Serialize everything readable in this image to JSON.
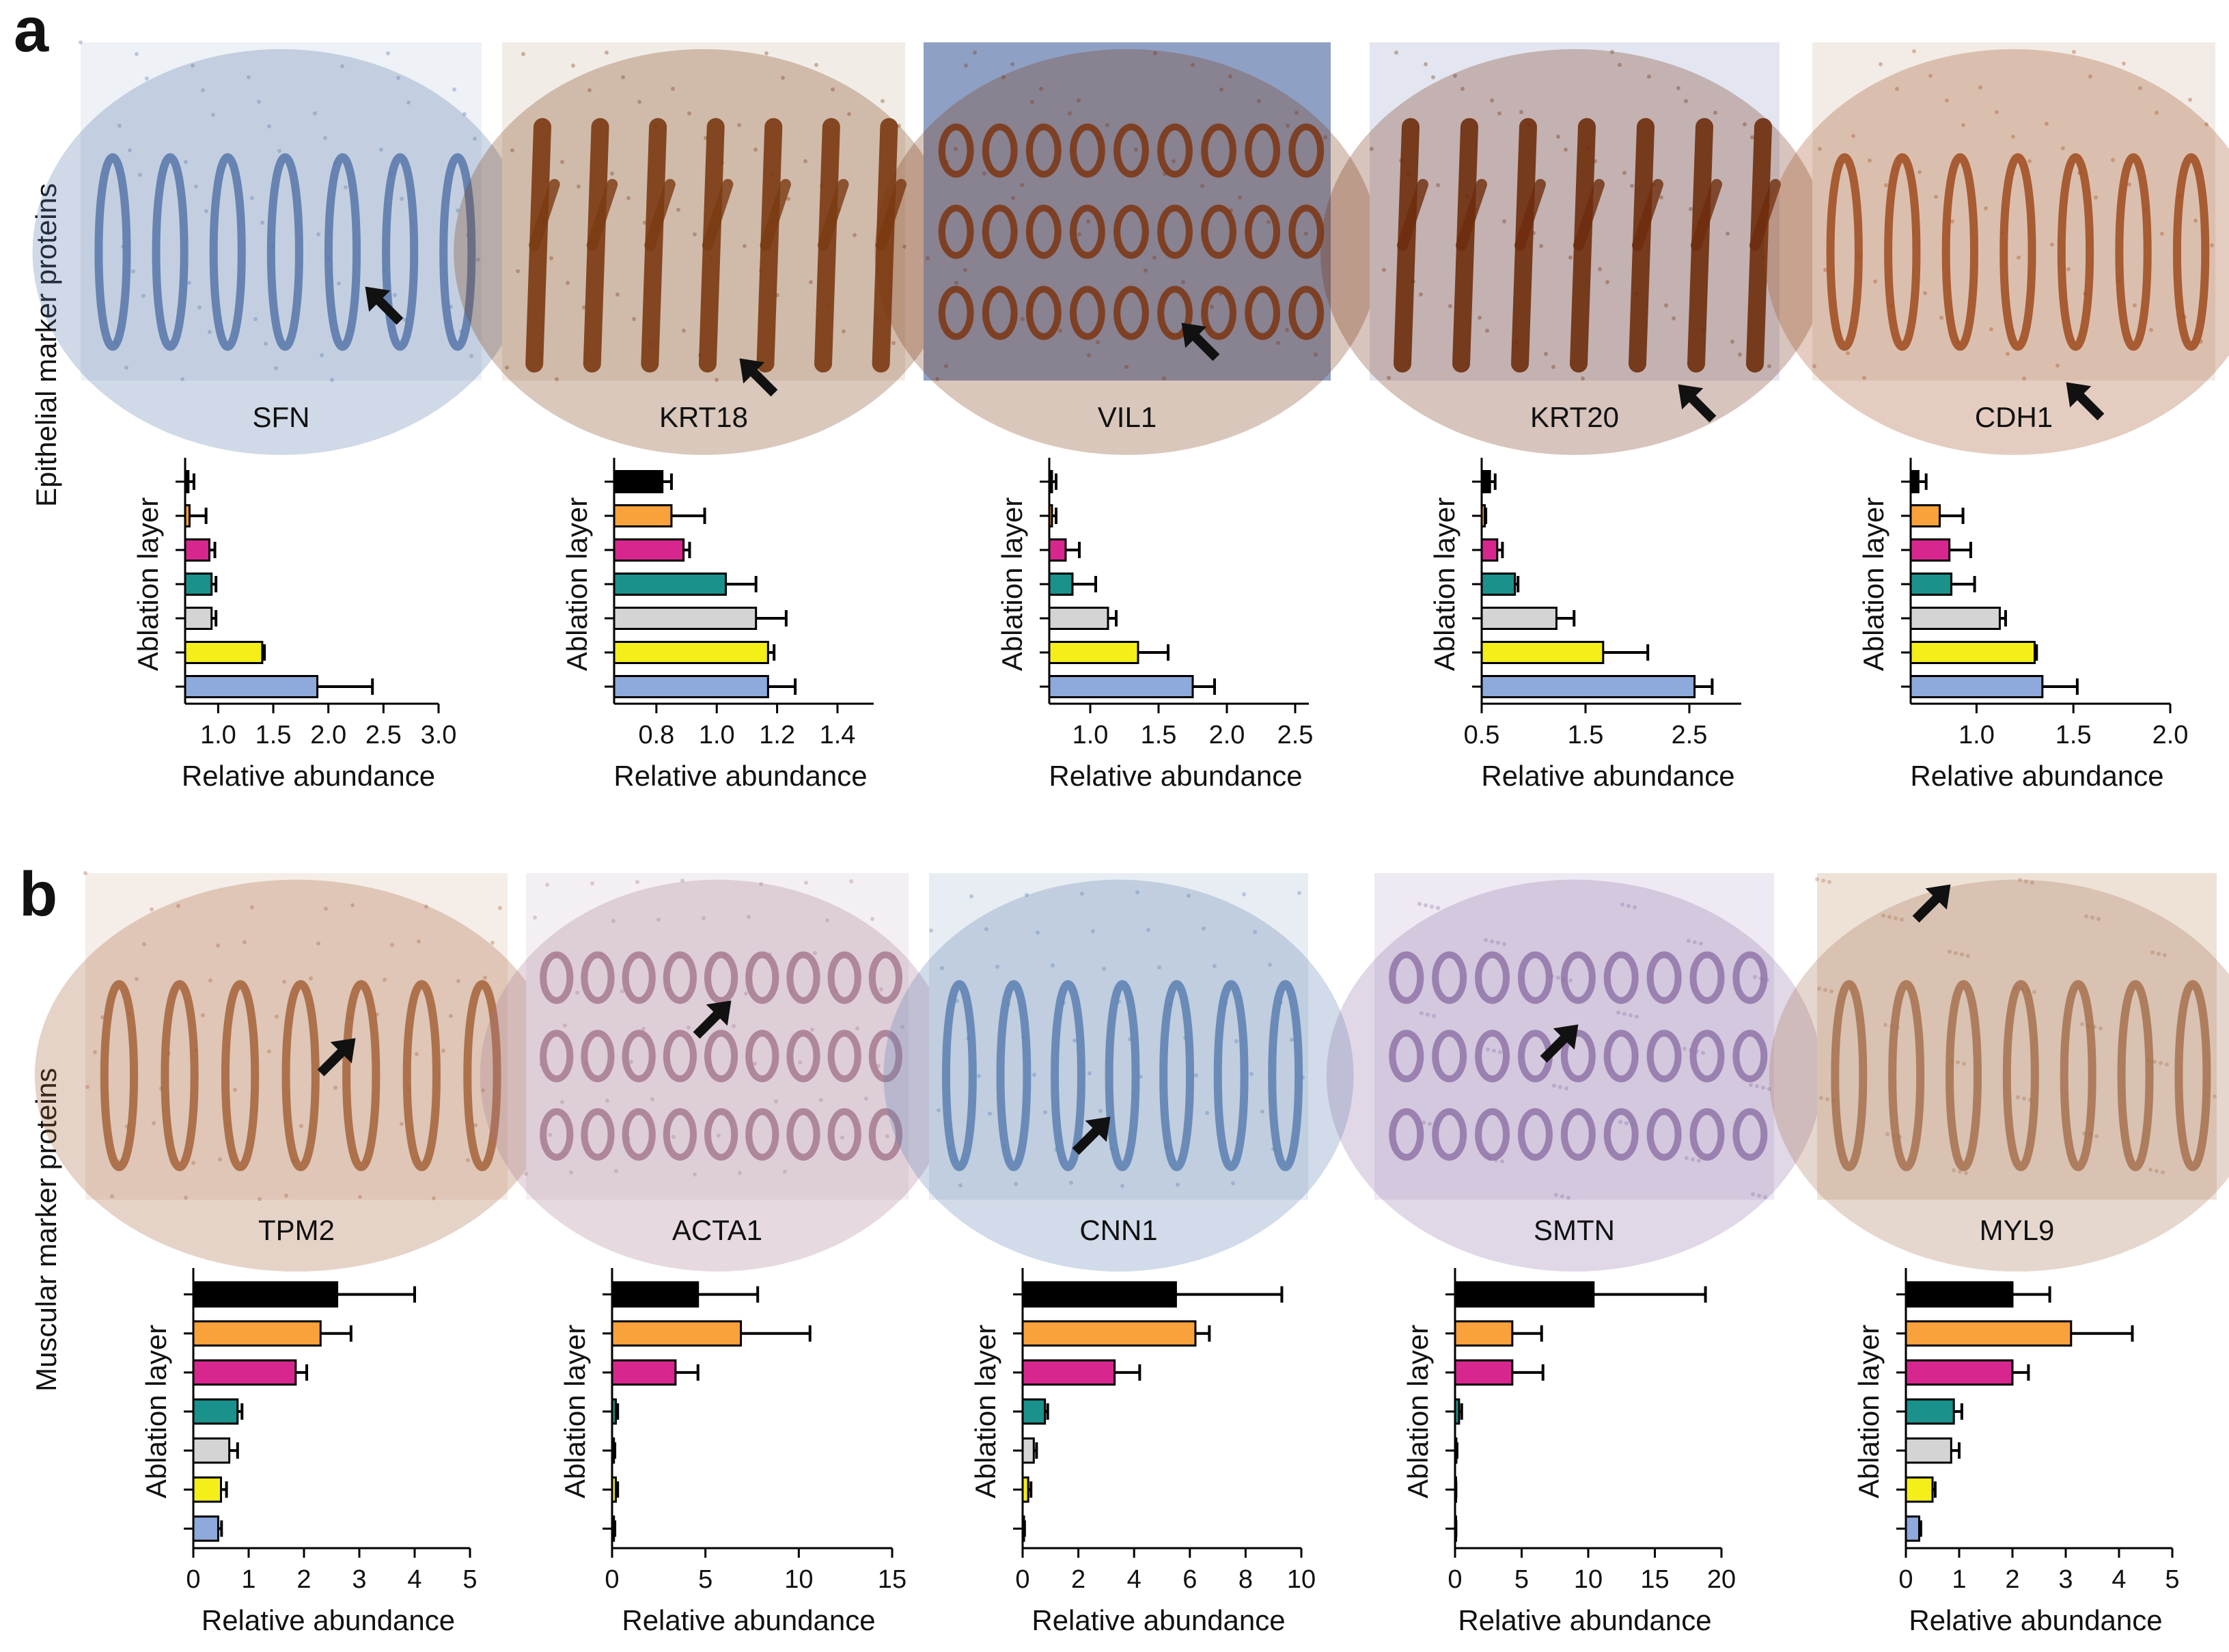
{
  "panels": [
    {
      "letter": "a",
      "row_label": "Epithelial marker proteins"
    },
    {
      "letter": "b",
      "row_label": "Muscular marker proteins"
    }
  ],
  "layer_colors": [
    "#000000",
    "#f9a13b",
    "#d7278e",
    "#1a918a",
    "#d4d4d4",
    "#f4ee19",
    "#8ea9db"
  ],
  "tissue_images": {
    "a": [
      {
        "stain": "#5676a9",
        "bg": "#eef1f6",
        "pattern": "crypts"
      },
      {
        "stain": "#7a3a12",
        "bg": "#f1ede6",
        "pattern": "branch"
      },
      {
        "stain": "#7b3510",
        "bg": "#8ea0c4",
        "pattern": "round"
      },
      {
        "stain": "#6e2c0d",
        "bg": "#e3e6f0",
        "pattern": "branch"
      },
      {
        "stain": "#9e4a1d",
        "bg": "#f3ece6",
        "pattern": "crypts"
      }
    ],
    "b": [
      {
        "stain": "#a5613a",
        "bg": "#f5ede8",
        "pattern": "crypts"
      },
      {
        "stain": "#a77a8f",
        "bg": "#f4eff4",
        "pattern": "round"
      },
      {
        "stain": "#5a7fb0",
        "bg": "#e8edf3",
        "pattern": "crypts"
      },
      {
        "stain": "#8f74a8",
        "bg": "#eee9f2",
        "pattern": "round"
      },
      {
        "stain": "#a57150",
        "bg": "#eee2d7",
        "pattern": "crypts"
      }
    ]
  },
  "chart_data": [
    {
      "type": "bar",
      "orientation": "horizontal",
      "panel": "a",
      "title": "SFN",
      "ylabel": "Ablation layer",
      "xlabel": "Relative abundance",
      "xlim": [
        0.7,
        3.0
      ],
      "xticks": [
        1.0,
        1.5,
        2.0,
        2.5,
        3.0
      ],
      "xtick_labels": [
        "1.0",
        "1.5",
        "2.0",
        "2.5",
        "3.0"
      ],
      "values": [
        0.73,
        0.74,
        0.92,
        0.94,
        0.94,
        1.4,
        1.9
      ],
      "errors": [
        0.05,
        0.15,
        0.05,
        0.04,
        0.04,
        0.02,
        0.5
      ]
    },
    {
      "type": "bar",
      "orientation": "horizontal",
      "panel": "a",
      "title": "KRT18",
      "ylabel": "Ablation layer",
      "xlabel": "Relative abundance",
      "xlim": [
        0.66,
        1.52
      ],
      "xticks": [
        0.8,
        1.0,
        1.2,
        1.4
      ],
      "xtick_labels": [
        "0.8",
        "1.0",
        "1.2",
        "1.4"
      ],
      "values": [
        0.82,
        0.85,
        0.89,
        1.03,
        1.13,
        1.17,
        1.17
      ],
      "errors": [
        0.03,
        0.11,
        0.02,
        0.1,
        0.1,
        0.02,
        0.09
      ]
    },
    {
      "type": "bar",
      "orientation": "horizontal",
      "panel": "a",
      "title": "VIL1",
      "ylabel": "Ablation layer",
      "xlabel": "Relative abundance",
      "xlim": [
        0.7,
        2.6
      ],
      "xticks": [
        1.0,
        1.5,
        2.0,
        2.5
      ],
      "xtick_labels": [
        "1.0",
        "1.5",
        "2.0",
        "2.5"
      ],
      "values": [
        0.72,
        0.72,
        0.82,
        0.87,
        1.13,
        1.35,
        1.75
      ],
      "errors": [
        0.03,
        0.03,
        0.1,
        0.17,
        0.06,
        0.22,
        0.16
      ]
    },
    {
      "type": "bar",
      "orientation": "horizontal",
      "panel": "a",
      "title": "KRT20",
      "ylabel": "Ablation layer",
      "xlabel": "Relative abundance",
      "xlim": [
        0.5,
        3.0
      ],
      "xticks": [
        0.5,
        1.5,
        2.5
      ],
      "xtick_labels": [
        "0.5",
        "1.5",
        "2.5"
      ],
      "values": [
        0.58,
        0.53,
        0.65,
        0.82,
        1.22,
        1.67,
        2.55
      ],
      "errors": [
        0.05,
        0.01,
        0.05,
        0.03,
        0.17,
        0.43,
        0.17
      ]
    },
    {
      "type": "bar",
      "orientation": "horizontal",
      "panel": "a",
      "title": "CDH1",
      "ylabel": "Ablation layer",
      "xlabel": "Relative abundance",
      "xlim": [
        0.66,
        2.0
      ],
      "xticks": [
        1.0,
        1.5,
        2.0
      ],
      "xtick_labels": [
        "1.0",
        "1.5",
        "2.0"
      ],
      "values": [
        0.7,
        0.81,
        0.86,
        0.87,
        1.12,
        1.3,
        1.34
      ],
      "errors": [
        0.04,
        0.12,
        0.11,
        0.12,
        0.03,
        0.01,
        0.18
      ]
    },
    {
      "type": "bar",
      "orientation": "horizontal",
      "panel": "b",
      "title": "TPM2",
      "ylabel": "Ablation layer",
      "xlabel": "Relative abundance",
      "xlim": [
        0,
        5
      ],
      "xticks": [
        0,
        1,
        2,
        3,
        4,
        5
      ],
      "xtick_labels": [
        "0",
        "1",
        "2",
        "3",
        "4",
        "5"
      ],
      "values": [
        2.6,
        2.3,
        1.85,
        0.8,
        0.65,
        0.5,
        0.45
      ],
      "errors": [
        1.4,
        0.55,
        0.2,
        0.08,
        0.15,
        0.1,
        0.06
      ]
    },
    {
      "type": "bar",
      "orientation": "horizontal",
      "panel": "b",
      "title": "ACTA1",
      "ylabel": "Ablation layer",
      "xlabel": "Relative abundance",
      "xlim": [
        0,
        15
      ],
      "xticks": [
        0,
        5,
        10,
        15
      ],
      "xtick_labels": [
        "0",
        "5",
        "10",
        "15"
      ],
      "values": [
        4.6,
        6.9,
        3.4,
        0.2,
        0.1,
        0.2,
        0.1
      ],
      "errors": [
        3.2,
        3.7,
        1.2,
        0.1,
        0.05,
        0.1,
        0.05
      ]
    },
    {
      "type": "bar",
      "orientation": "horizontal",
      "panel": "b",
      "title": "CNN1",
      "ylabel": "Ablation layer",
      "xlabel": "Relative abundance",
      "xlim": [
        0,
        10
      ],
      "xticks": [
        0,
        2,
        4,
        6,
        8,
        10
      ],
      "xtick_labels": [
        "0",
        "2",
        "4",
        "6",
        "8",
        "10"
      ],
      "values": [
        5.5,
        6.2,
        3.3,
        0.8,
        0.4,
        0.2,
        0.05
      ],
      "errors": [
        3.8,
        0.5,
        0.9,
        0.1,
        0.1,
        0.1,
        0.02
      ]
    },
    {
      "type": "bar",
      "orientation": "horizontal",
      "panel": "b",
      "title": "SMTN",
      "ylabel": "Ablation layer",
      "xlabel": "Relative abundance",
      "xlim": [
        0,
        20
      ],
      "xticks": [
        0,
        5,
        10,
        15,
        20
      ],
      "xtick_labels": [
        "0",
        "5",
        "10",
        "15",
        "20"
      ],
      "values": [
        10.4,
        4.3,
        4.3,
        0.3,
        0.1,
        0.05,
        0.05
      ],
      "errors": [
        8.4,
        2.2,
        2.3,
        0.2,
        0.05,
        0.02,
        0.02
      ]
    },
    {
      "type": "bar",
      "orientation": "horizontal",
      "panel": "b",
      "title": "MYL9",
      "ylabel": "Ablation layer",
      "xlabel": "Relative abundance",
      "xlim": [
        0,
        5
      ],
      "xticks": [
        0,
        1,
        2,
        3,
        4,
        5
      ],
      "xtick_labels": [
        "0",
        "1",
        "2",
        "3",
        "4",
        "5"
      ],
      "values": [
        2.0,
        3.1,
        2.0,
        0.9,
        0.85,
        0.5,
        0.25
      ],
      "errors": [
        0.7,
        1.15,
        0.3,
        0.15,
        0.15,
        0.05,
        0.03
      ]
    }
  ]
}
